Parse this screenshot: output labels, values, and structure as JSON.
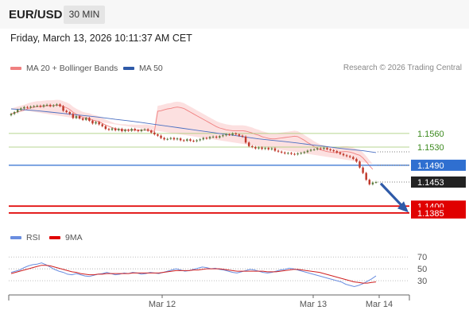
{
  "header": {
    "symbol": "EUR/USD",
    "timeframe": "30 MIN",
    "datetime": "Friday, March 13, 2026 10:11:37 AM CET"
  },
  "legend": {
    "bollinger_label": "MA 20 + Bollinger Bands",
    "ma50_label": "MA 50",
    "credit": "Research © 2026 Trading Central"
  },
  "rsi_legend": {
    "rsi_label": "RSI",
    "ma_label": "9MA"
  },
  "colors": {
    "bull": "#5c7a3e",
    "bear": "#c0392b",
    "ma50": "#4a6fc2",
    "bband_fill": "#fbd6d6",
    "bband_line": "#f08080",
    "support_line": "#e00000",
    "pivot_line": "#2f6fd0",
    "resistance_line": "#9fc86b",
    "label_green": "#3c8a1e",
    "label_blue": "#2f6fd0",
    "label_red": "#e00000",
    "label_dark": "#222222",
    "rsi_line": "#6a8ee0",
    "rsi_ma_line": "#d02020"
  },
  "chart_data": {
    "type": "candlestick",
    "price_axis": {
      "ylim": [
        1.1355,
        1.167
      ]
    },
    "x_ticks": [
      "Mar 12",
      "Mar 13",
      "Mar 14"
    ],
    "levels": [
      {
        "value": 1.156,
        "label": "1.1560",
        "role": "resistance"
      },
      {
        "value": 1.153,
        "label": "1.1530",
        "role": "resistance"
      },
      {
        "value": 1.149,
        "label": "1.1490",
        "role": "pivot"
      },
      {
        "value": 1.14,
        "label": "1.1400",
        "role": "support"
      },
      {
        "value": 1.1385,
        "label": "1.1385",
        "role": "support"
      }
    ],
    "last_price": {
      "value": 1.1453,
      "label": "1.1453"
    },
    "closes": [
      1.1603,
      1.1607,
      1.1612,
      1.1615,
      1.1618,
      1.1617,
      1.1619,
      1.162,
      1.1621,
      1.1619,
      1.1622,
      1.1623,
      1.162,
      1.1622,
      1.1624,
      1.162,
      1.161,
      1.1607,
      1.1603,
      1.1594,
      1.1598,
      1.1593,
      1.159,
      1.1594,
      1.1588,
      1.1582,
      1.1585,
      1.158,
      1.1576,
      1.157,
      1.1568,
      1.1571,
      1.1567,
      1.157,
      1.1565,
      1.1568,
      1.1566,
      1.157,
      1.1567,
      1.1565,
      1.1568,
      1.1569,
      1.1566,
      1.1562,
      1.1558,
      1.1555,
      1.155,
      1.1547,
      1.1548,
      1.155,
      1.1547,
      1.1549,
      1.1545,
      1.1544,
      1.1547,
      1.1544,
      1.1543,
      1.1545,
      1.1547,
      1.155,
      1.1549,
      1.1552,
      1.1553,
      1.1551,
      1.1554,
      1.1556,
      1.1558,
      1.1557,
      1.156,
      1.1558,
      1.1555,
      1.1553,
      1.154,
      1.1532,
      1.153,
      1.1527,
      1.1529,
      1.1526,
      1.1528,
      1.1525,
      1.1527,
      1.1522,
      1.152,
      1.1518,
      1.1516,
      1.1517,
      1.1515,
      1.1514,
      1.1516,
      1.1517,
      1.1519,
      1.1522,
      1.1524,
      1.1525,
      1.1527,
      1.1526,
      1.1528,
      1.1525,
      1.1523,
      1.1521,
      1.1518,
      1.1515,
      1.1512,
      1.151,
      1.1508,
      1.1504,
      1.1498,
      1.1485,
      1.1473,
      1.1458,
      1.1448,
      1.1452,
      1.1453
    ],
    "ma20": [
      1.1609,
      1.161,
      1.1612,
      1.1614,
      1.1615,
      1.1617,
      1.1618,
      1.1617,
      1.1615,
      1.1611,
      1.1607,
      1.1603,
      1.1599,
      1.1595,
      1.1591,
      1.1587,
      1.1583,
      1.1579,
      1.1575,
      1.1572,
      1.157,
      1.1568,
      1.1567,
      1.1566,
      1.1566,
      1.1566,
      1.1566,
      1.1565,
      1.1563,
      1.1561,
      1.1558,
      1.1556,
      1.1553,
      1.1551,
      1.1549,
      1.1548,
      1.1548,
      1.1549,
      1.155,
      1.1551,
      1.1552,
      1.1553,
      1.1554,
      1.1553,
      1.1549,
      1.1545,
      1.154,
      1.1536,
      1.1531,
      1.1527,
      1.1524,
      1.1522,
      1.152,
      1.1519,
      1.1518,
      1.1518,
      1.1519,
      1.152,
      1.152,
      1.1519,
      1.1517,
      1.1514,
      1.1512,
      1.1506,
      1.1498,
      1.1489,
      1.1481
    ],
    "ma20_start_index": 45,
    "bb_halfwidth": 0.0012,
    "ma50": [
      1.1614,
      1.1612,
      1.161,
      1.1607,
      1.1604,
      1.1601,
      1.1598,
      1.1595,
      1.1591,
      1.1588,
      1.1584,
      1.158,
      1.1576,
      1.1572,
      1.1568,
      1.1564,
      1.156,
      1.1556,
      1.1552,
      1.1548,
      1.1545,
      1.1542,
      1.1539,
      1.1535,
      1.1532,
      1.1528,
      1.1525,
      1.1522,
      1.1518
    ],
    "rsi_axis": {
      "ticks": [
        70,
        50,
        30
      ],
      "ylim": [
        10,
        85
      ]
    },
    "rsi": [
      44,
      46,
      48,
      52,
      55,
      57,
      58,
      60,
      57,
      53,
      49,
      46,
      44,
      41,
      40,
      42,
      40,
      38,
      37,
      39,
      41,
      42,
      44,
      42,
      40,
      41,
      43,
      42,
      44,
      43,
      41,
      42,
      44,
      43,
      42,
      44,
      46,
      48,
      50,
      48,
      46,
      47,
      49,
      51,
      53,
      52,
      50,
      51,
      49,
      48,
      46,
      44,
      43,
      45,
      47,
      49,
      48,
      46,
      44,
      43,
      44,
      46,
      48,
      49,
      51,
      50,
      48,
      46,
      44,
      42,
      40,
      38,
      36,
      34,
      32,
      30,
      28,
      24,
      22,
      20,
      22,
      25,
      29,
      33,
      38
    ],
    "rsi_ma": [
      42,
      44,
      46,
      48,
      50,
      52,
      54,
      56,
      56,
      55,
      53,
      51,
      49,
      47,
      45,
      44,
      42,
      41,
      40,
      40,
      41,
      41,
      42,
      42,
      42,
      42,
      42,
      42,
      43,
      43,
      43,
      43,
      43,
      43,
      43,
      44,
      45,
      46,
      47,
      47,
      47,
      47,
      48,
      48,
      49,
      50,
      50,
      50,
      50,
      49,
      48,
      47,
      46,
      46,
      46,
      46,
      46,
      46,
      46,
      45,
      45,
      45,
      46,
      47,
      48,
      49,
      49,
      48,
      47,
      46,
      45,
      44,
      42,
      40,
      38,
      36,
      34,
      32,
      30,
      28,
      27,
      26,
      26,
      27,
      28
    ]
  }
}
